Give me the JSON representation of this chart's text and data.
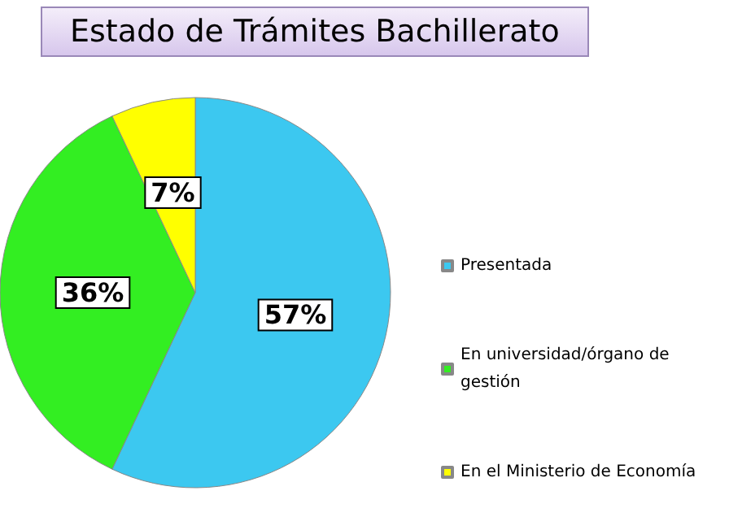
{
  "chart_data": {
    "type": "pie",
    "title": "Estado de Trámites Bachillerato",
    "categories": [
      "Presentada",
      "En universidad/órgano de gestión",
      "En el Ministerio de Economía"
    ],
    "values": [
      57,
      36,
      7
    ],
    "colors": [
      "#3cc8f0",
      "#33ee22",
      "#ffff00"
    ],
    "value_labels": [
      "57%",
      "36%",
      "7%"
    ],
    "legend": "right"
  }
}
